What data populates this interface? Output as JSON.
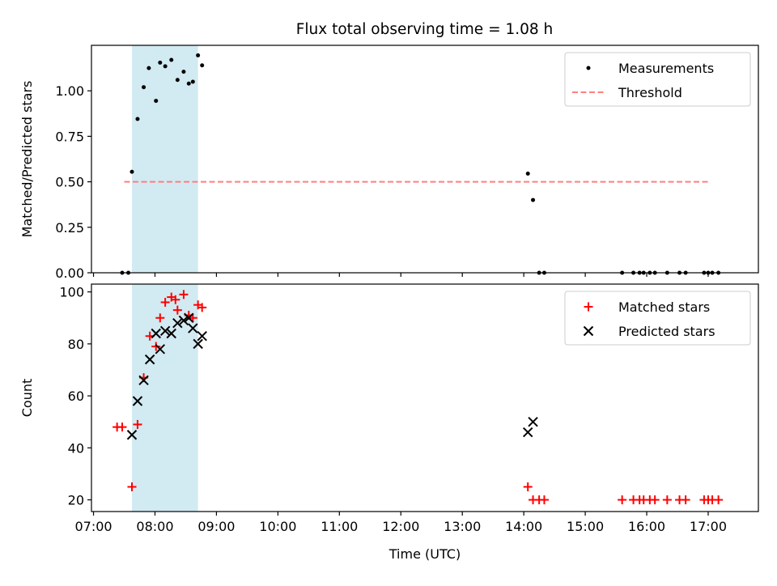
{
  "figure_title": "Flux total observing time = 1.08 h",
  "colors": {
    "shade": "#add8e6",
    "threshold": "#ff7f7f",
    "measurement": "#000000",
    "matched": "#ff0000",
    "predicted": "#000000"
  },
  "chart_data": [
    {
      "type": "scatter",
      "panel": "top",
      "title": "Flux total observing time = 1.08 h",
      "xlabel": "",
      "ylabel": "Matched/Predicted stars",
      "xlim": [
        418,
        1069
      ],
      "ylim": [
        0,
        1.25
      ],
      "yticks": [
        0.0,
        0.25,
        0.5,
        0.75,
        1.0
      ],
      "ytick_labels": [
        "0.00",
        "0.25",
        "0.50",
        "0.75",
        "1.00"
      ],
      "grid": false,
      "legend": "top-right",
      "shaded_interval": [
        457.5,
        522
      ],
      "threshold": {
        "name": "Threshold",
        "y": 0.5,
        "x_range": [
          450,
          1020
        ]
      },
      "series": [
        {
          "name": "Measurements",
          "marker": "dot",
          "x": [
            448,
            454,
            457.5,
            463,
            469,
            474,
            481,
            485,
            490,
            496,
            502,
            508,
            513,
            517,
            522,
            526,
            844,
            849,
            855,
            860,
            936,
            947,
            953,
            957,
            963,
            968,
            980,
            992,
            998,
            1016,
            1020,
            1024,
            1030
          ],
          "y": [
            0.0,
            0.0,
            0.555,
            0.845,
            1.02,
            1.125,
            0.945,
            1.155,
            1.135,
            1.17,
            1.06,
            1.105,
            1.04,
            1.05,
            1.195,
            1.14,
            0.545,
            0.4,
            0.0,
            0.0,
            0.0,
            0.0,
            0.0,
            0.0,
            0.0,
            0.0,
            0.0,
            0.0,
            0.0,
            0.0,
            0.0,
            0.0,
            0.0
          ]
        }
      ]
    },
    {
      "type": "scatter",
      "panel": "bottom",
      "title": "",
      "xlabel": "Time (UTC)",
      "ylabel": "Count",
      "xlim": [
        418,
        1069
      ],
      "ylim": [
        15.5,
        103
      ],
      "yticks": [
        20,
        40,
        60,
        80,
        100
      ],
      "ytick_labels": [
        "20",
        "40",
        "60",
        "80",
        "100"
      ],
      "xticks": [
        420,
        480,
        540,
        600,
        660,
        720,
        780,
        840,
        900,
        960,
        1020
      ],
      "xtick_labels": [
        "07:00",
        "08:00",
        "09:00",
        "10:00",
        "11:00",
        "12:00",
        "13:00",
        "14:00",
        "15:00",
        "16:00",
        "17:00"
      ],
      "grid": false,
      "legend": "top-right",
      "shaded_interval": [
        457.5,
        522
      ],
      "series": [
        {
          "name": "Matched stars",
          "marker": "plus",
          "x": [
            443,
            448,
            457.5,
            463,
            469,
            475,
            481,
            485,
            490,
            496,
            500,
            502,
            508,
            513,
            517,
            522,
            526,
            844,
            849,
            855,
            860,
            936,
            947,
            953,
            957,
            963,
            968,
            980,
            992,
            998,
            1016,
            1020,
            1024,
            1030
          ],
          "y": [
            48,
            48,
            25,
            49,
            67,
            83,
            79,
            90,
            96,
            98,
            97,
            93,
            99,
            91,
            90,
            95,
            94,
            25,
            20,
            20,
            20,
            20,
            20,
            20,
            20,
            20,
            20,
            20,
            20,
            20,
            20,
            20,
            20,
            20
          ]
        },
        {
          "name": "Predicted stars",
          "marker": "x",
          "x": [
            457.5,
            463,
            469,
            475,
            481,
            485,
            490,
            496,
            502,
            508,
            513,
            517,
            522,
            526,
            844,
            849
          ],
          "y": [
            45,
            58,
            66,
            74,
            84,
            78,
            85,
            84,
            88,
            89,
            90,
            86,
            80,
            83,
            46,
            50
          ]
        }
      ]
    }
  ]
}
